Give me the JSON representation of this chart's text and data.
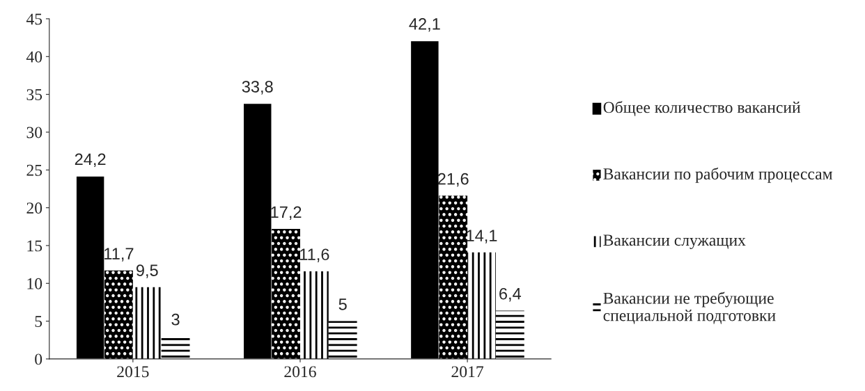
{
  "chart_data": {
    "type": "bar",
    "categories": [
      "2015",
      "2016",
      "2017"
    ],
    "series": [
      {
        "name": "Общее количество вакансий",
        "color": "#000000",
        "values": [
          24.2,
          33.8,
          42.1
        ],
        "value_labels": [
          "24,2",
          "33,8",
          "42,1"
        ]
      },
      {
        "name": "Вакансии по рабочим процессам",
        "color": "#000000",
        "values": [
          11.7,
          17.2,
          21.6
        ],
        "value_labels": [
          "11,7",
          "17,2",
          "21,6"
        ]
      },
      {
        "name": "Вакансии служащих",
        "color": "#000000",
        "values": [
          9.5,
          11.6,
          14.1
        ],
        "value_labels": [
          "9,5",
          "11,6",
          "14,1"
        ]
      },
      {
        "name": "Вакансии не требующие специальной подготовки",
        "color": "#000000",
        "values": [
          3,
          5,
          6.4
        ],
        "value_labels": [
          "3",
          "5",
          "6,4"
        ]
      }
    ],
    "ylim": [
      0,
      45
    ],
    "yticks": [
      0,
      5,
      10,
      15,
      20,
      25,
      30,
      35,
      40,
      45
    ],
    "grid": false,
    "legend": "right"
  }
}
